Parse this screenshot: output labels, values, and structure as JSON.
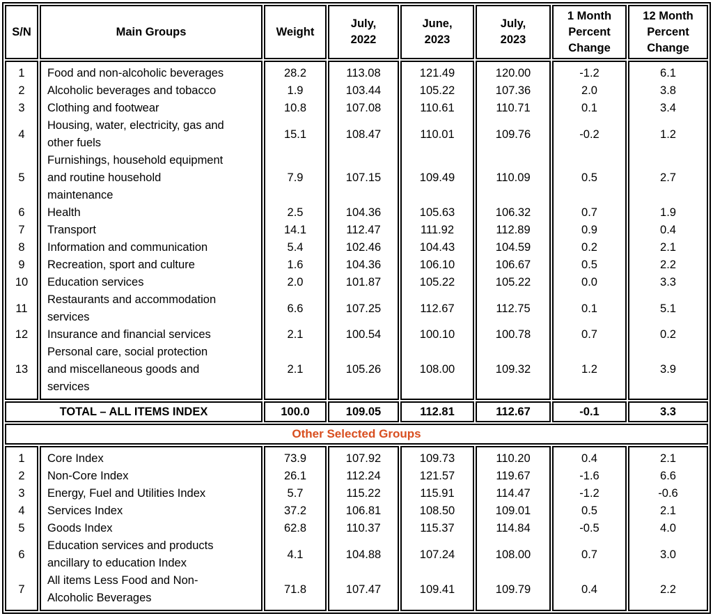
{
  "columns": [
    "S/N",
    "Main Groups",
    "Weight",
    "July,\n2022",
    "June,\n2023",
    "July,\n2023",
    "1 Month\nPercent\nChange",
    "12 Month\nPercent\nChange"
  ],
  "main_groups": {
    "rows": [
      [
        "1",
        "Food and non-alcoholic beverages",
        "28.2",
        "113.08",
        "121.49",
        "120.00",
        "-1.2",
        "6.1"
      ],
      [
        "2",
        "Alcoholic beverages and tobacco",
        "1.9",
        "103.44",
        "105.22",
        "107.36",
        "2.0",
        "3.8"
      ],
      [
        "3",
        "Clothing and footwear",
        "10.8",
        "107.08",
        "110.61",
        "110.71",
        "0.1",
        "3.4"
      ],
      [
        "4",
        "Housing, water, electricity, gas and\nother fuels",
        "15.1",
        "108.47",
        "110.01",
        "109.76",
        "-0.2",
        "1.2"
      ],
      [
        "5",
        "Furnishings, household equipment\nand routine household\nmaintenance",
        "7.9",
        "107.15",
        "109.49",
        "110.09",
        "0.5",
        "2.7"
      ],
      [
        "6",
        "Health",
        "2.5",
        "104.36",
        "105.63",
        "106.32",
        "0.7",
        "1.9"
      ],
      [
        "7",
        "Transport",
        "14.1",
        "112.47",
        "111.92",
        "112.89",
        "0.9",
        "0.4"
      ],
      [
        "8",
        "Information and communication",
        "5.4",
        "102.46",
        "104.43",
        "104.59",
        "0.2",
        "2.1"
      ],
      [
        "9",
        "Recreation, sport and culture",
        "1.6",
        "104.36",
        "106.10",
        "106.67",
        "0.5",
        "2.2"
      ],
      [
        "10",
        "Education services",
        "2.0",
        "101.87",
        "105.22",
        "105.22",
        "0.0",
        "3.3"
      ],
      [
        "11",
        "Restaurants and accommodation\nservices",
        "6.6",
        "107.25",
        "112.67",
        "112.75",
        "0.1",
        "5.1"
      ],
      [
        "12",
        "Insurance and financial services",
        "2.1",
        "100.54",
        "100.10",
        "100.78",
        "0.7",
        "0.2"
      ],
      [
        "13",
        "Personal care, social protection\nand miscellaneous goods and\nservices",
        "2.1",
        "105.26",
        "108.00",
        "109.32",
        "1.2",
        "3.9"
      ]
    ],
    "total": [
      "TOTAL – ALL ITEMS INDEX",
      "100.0",
      "109.05",
      "112.81",
      "112.67",
      "-0.1",
      "3.3"
    ]
  },
  "section_header": {
    "label": "Other Selected Groups",
    "color": "#D84E1F"
  },
  "other_groups": {
    "rows": [
      [
        "1",
        "Core Index",
        "73.9",
        "107.92",
        "109.73",
        "110.20",
        "0.4",
        "2.1"
      ],
      [
        "2",
        "Non-Core Index",
        "26.1",
        "112.24",
        "121.57",
        "119.67",
        "-1.6",
        "6.6"
      ],
      [
        "3",
        "Energy, Fuel and Utilities Index",
        "5.7",
        "115.22",
        "115.91",
        "114.47",
        "-1.2",
        "-0.6"
      ],
      [
        "4",
        "Services Index",
        "37.2",
        "106.81",
        "108.50",
        "109.01",
        "0.5",
        "2.1"
      ],
      [
        "5",
        "Goods Index",
        "62.8",
        "110.37",
        "115.37",
        "114.84",
        "-0.5",
        "4.0"
      ],
      [
        "6",
        "Education services and products\nancillary to education Index",
        "4.1",
        "104.88",
        "107.24",
        "108.00",
        "0.7",
        "3.0"
      ],
      [
        "7",
        "All items Less Food and Non-\nAlcoholic Beverages",
        "71.8",
        "107.47",
        "109.41",
        "109.79",
        "0.4",
        "2.2"
      ]
    ]
  },
  "colors": {
    "border": "#000000",
    "text": "#000000"
  }
}
